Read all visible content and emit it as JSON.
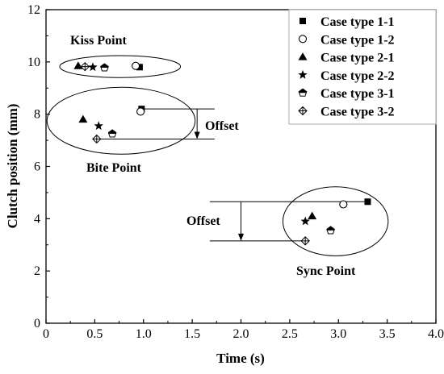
{
  "chart_data": {
    "type": "scatter",
    "title": "",
    "xlabel": "Time (s)",
    "ylabel": "Clutch position (mm)",
    "xlim": [
      0,
      4.0
    ],
    "ylim": [
      0,
      12
    ],
    "x_ticks": [
      0,
      0.5,
      1.0,
      1.5,
      2.0,
      2.5,
      3.0,
      3.5,
      4.0
    ],
    "x_tick_labels": [
      "0",
      "0.5",
      "1.0",
      "1.5",
      "2.0",
      "2.5",
      "3.0",
      "3.5",
      "4.0"
    ],
    "y_ticks": [
      0,
      2,
      4,
      6,
      8,
      10,
      12
    ],
    "y_tick_labels": [
      "0",
      "2",
      "4",
      "6",
      "8",
      "10",
      "12"
    ],
    "grid": false,
    "legend_position": "top-right",
    "series": [
      {
        "name": "Case type 1-1",
        "marker": "filled-square",
        "points": [
          {
            "x": 0.96,
            "y": 9.8
          },
          {
            "x": 0.98,
            "y": 8.2
          },
          {
            "x": 3.3,
            "y": 4.65
          }
        ]
      },
      {
        "name": "Case type 1-2",
        "marker": "open-circle",
        "points": [
          {
            "x": 0.92,
            "y": 9.85
          },
          {
            "x": 0.97,
            "y": 8.1
          },
          {
            "x": 3.05,
            "y": 4.55
          }
        ]
      },
      {
        "name": "Case type 2-1",
        "marker": "filled-triangle",
        "points": [
          {
            "x": 0.33,
            "y": 9.85
          },
          {
            "x": 0.38,
            "y": 7.8
          },
          {
            "x": 2.73,
            "y": 4.1
          }
        ]
      },
      {
        "name": "Case type 2-2",
        "marker": "filled-star",
        "points": [
          {
            "x": 0.48,
            "y": 9.8
          },
          {
            "x": 0.54,
            "y": 7.55
          },
          {
            "x": 2.66,
            "y": 3.9
          }
        ]
      },
      {
        "name": "Case type 3-1",
        "marker": "half-pentagon",
        "points": [
          {
            "x": 0.6,
            "y": 9.78
          },
          {
            "x": 0.68,
            "y": 7.25
          },
          {
            "x": 2.92,
            "y": 3.55
          }
        ]
      },
      {
        "name": "Case type 3-2",
        "marker": "crossed-diamond",
        "points": [
          {
            "x": 0.4,
            "y": 9.82
          },
          {
            "x": 0.52,
            "y": 7.05
          },
          {
            "x": 2.66,
            "y": 3.15
          }
        ]
      }
    ],
    "annotations": {
      "kiss_point": "Kiss Point",
      "bite_point": "Bite Point",
      "sync_point": "Sync Point",
      "offset_1": "Offset",
      "offset_2": "Offset"
    },
    "ellipses": [
      {
        "name": "kiss",
        "cx": 0.76,
        "cy": 9.82,
        "rx": 0.62,
        "ry": 0.42
      },
      {
        "name": "bite",
        "cx": 0.77,
        "cy": 7.75,
        "rx": 0.76,
        "ry": 1.28
      },
      {
        "name": "sync",
        "cx": 2.97,
        "cy": 3.9,
        "rx": 0.54,
        "ry": 1.32
      }
    ],
    "offset_brackets": [
      {
        "name": "offset-bracket-bite",
        "x_start": 0.98,
        "x_end": 1.73,
        "y_top": 8.2,
        "y_bottom": 7.05,
        "arrow_x": 1.55
      },
      {
        "name": "offset-bracket-sync",
        "x_start": 1.68,
        "x_end": 3.3,
        "y_top": 4.65,
        "y_bottom": 3.15,
        "arrow_x": 2.0
      }
    ]
  }
}
